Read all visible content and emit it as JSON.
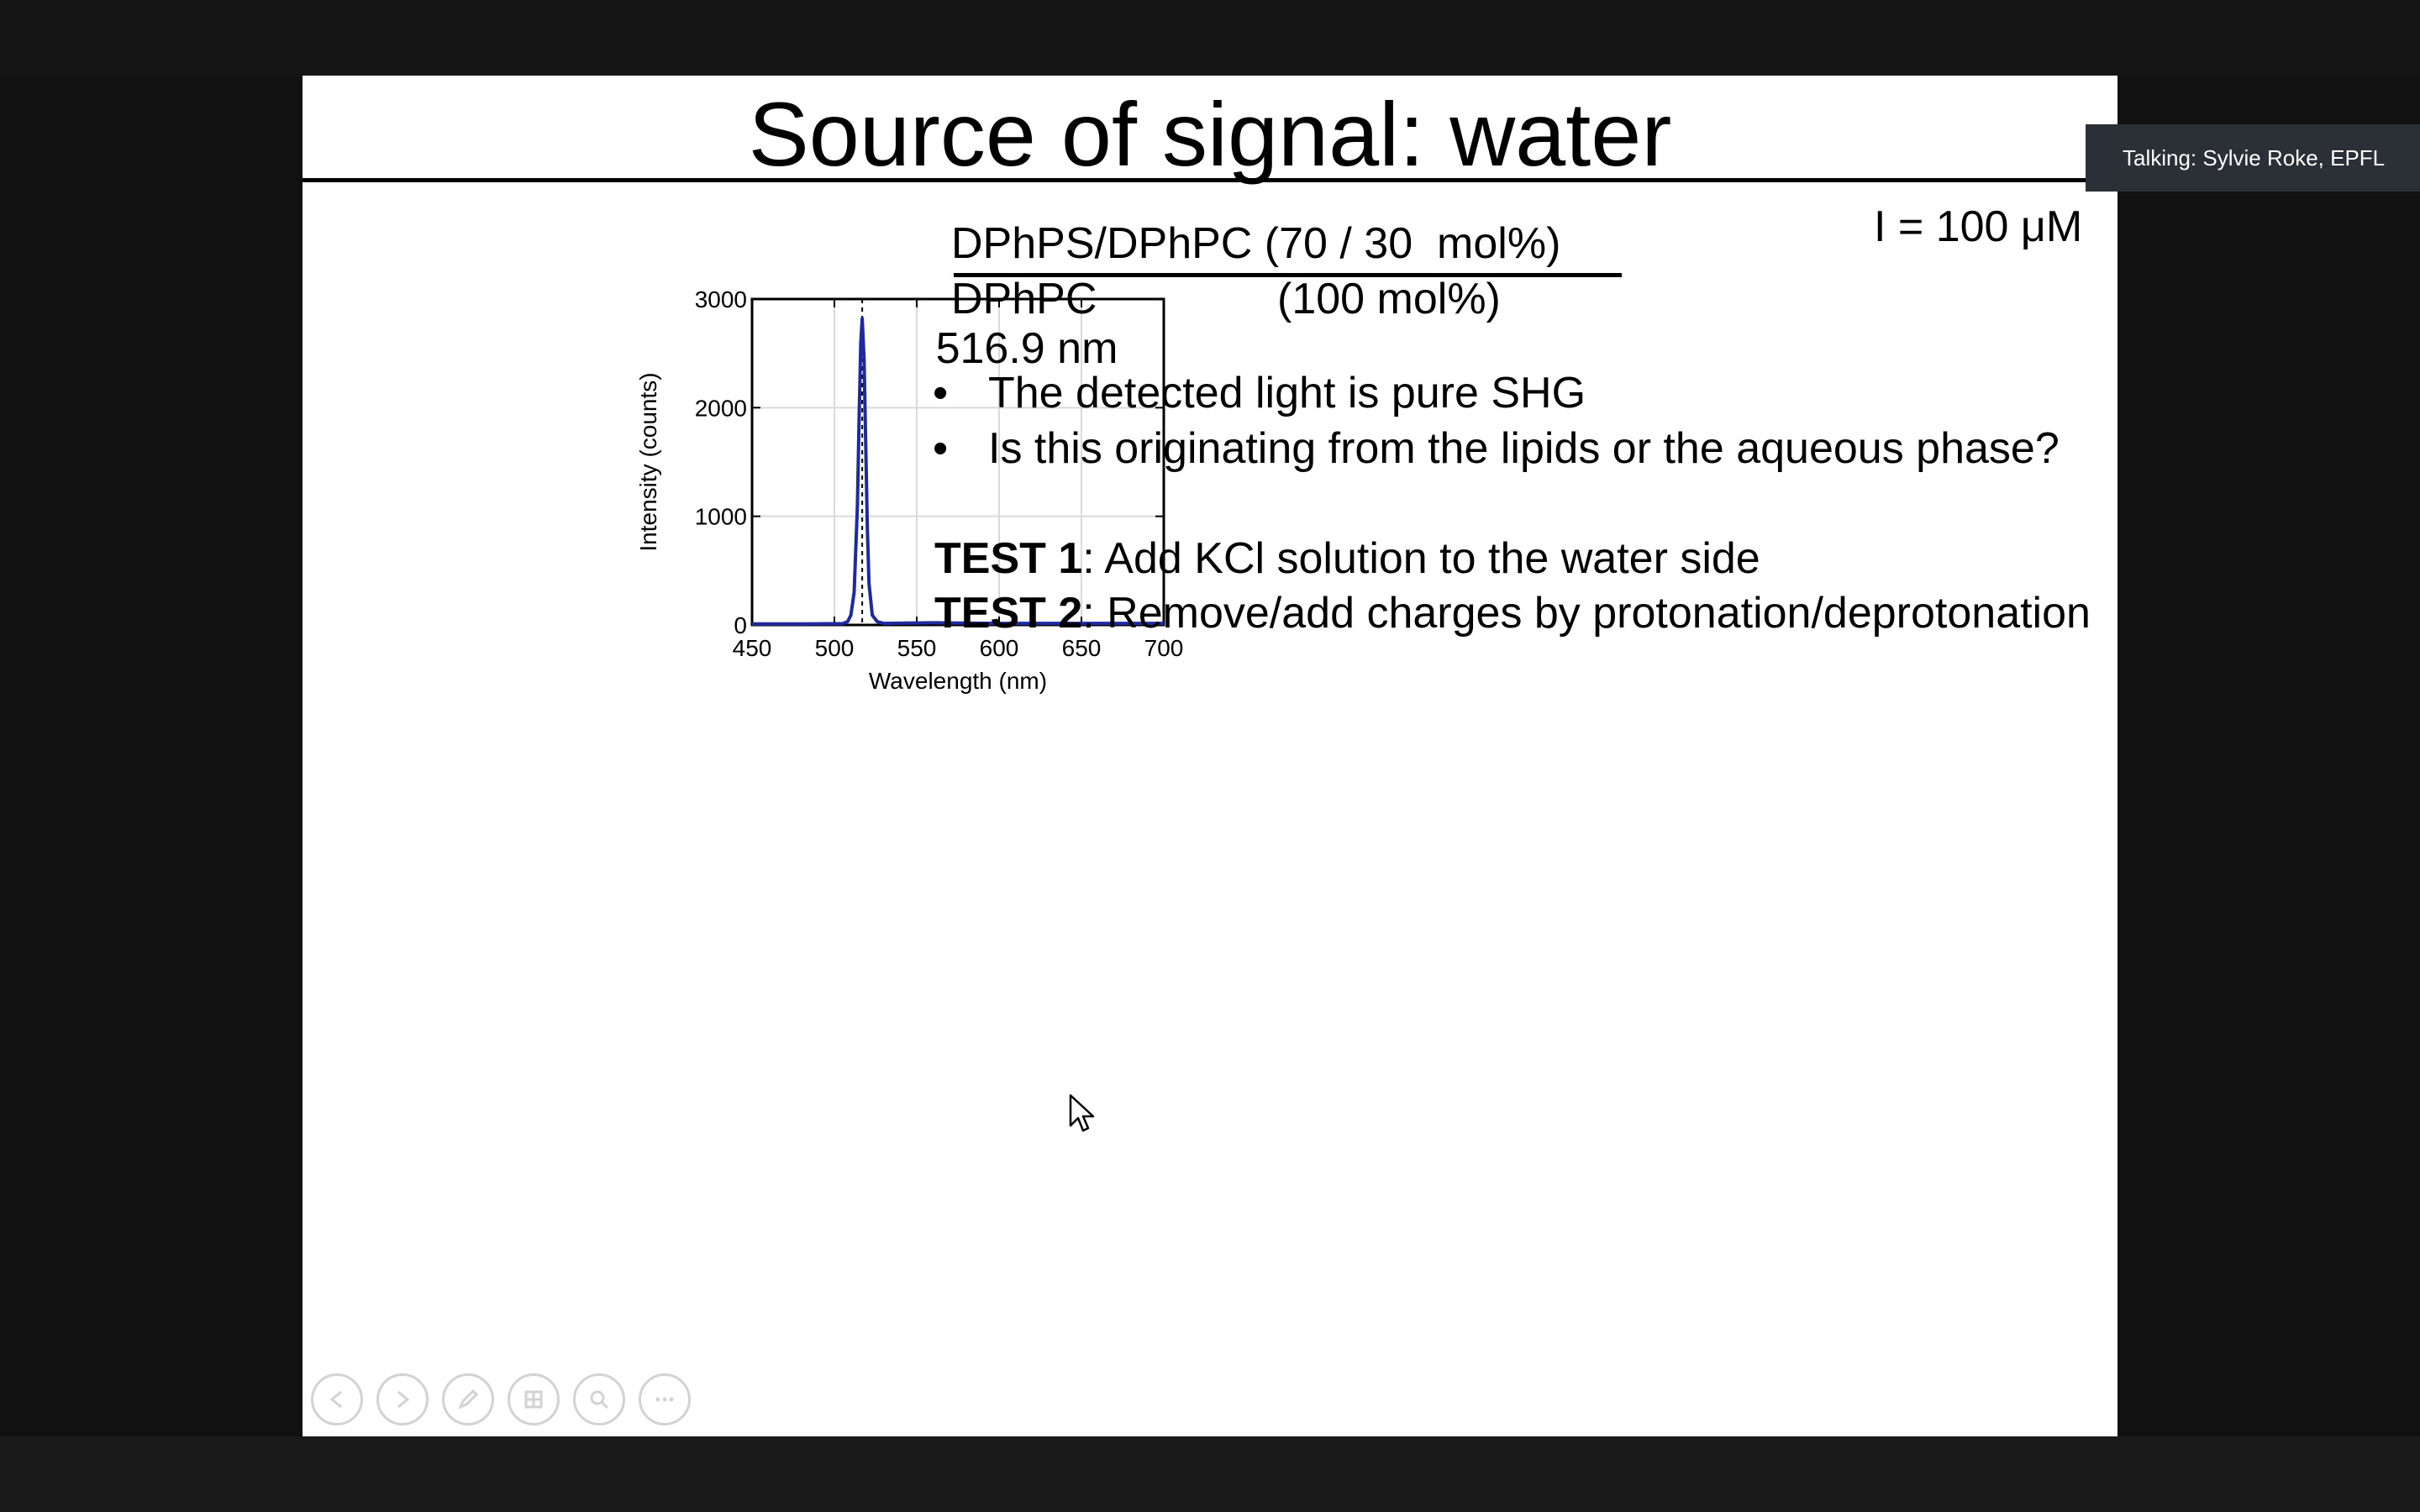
{
  "slide": {
    "title": "Source of signal: water",
    "fraction": {
      "numerator": "DPhPS/DPhPC (70 / 30  mol%)",
      "denominator_left": "DPhPC",
      "denominator_right": "(100 mol%)"
    },
    "concentration": "I = 100 μM",
    "bullets": [
      "The detected light is pure SHG",
      "Is this originating from the lipids or the aqueous phase?"
    ],
    "bullet_symbol": "•",
    "tests": [
      {
        "label": "TEST 1",
        "text": ": Add KCl solution to the water side"
      },
      {
        "label": "TEST 2",
        "text": ": Remove/add charges by protonation/deprotonation"
      }
    ]
  },
  "chart_data": {
    "type": "line",
    "ylabel": "Intensity (counts)",
    "xlabel": "Wavelength (nm)",
    "annotation": "516.9 nm",
    "xlim": [
      450,
      700
    ],
    "ylim": [
      0,
      3000
    ],
    "xticks": [
      450,
      500,
      550,
      600,
      650,
      700
    ],
    "yticks": [
      0,
      1000,
      2000,
      3000
    ],
    "grid": true,
    "reference_line_x": 516.9,
    "series": [
      {
        "color": "#1f2aa0",
        "x": [
          450,
          480,
          505,
          508,
          510,
          512,
          514,
          515,
          516,
          516.9,
          518,
          519,
          520,
          521,
          523,
          526,
          530,
          560,
          600,
          650,
          700
        ],
        "y": [
          10,
          10,
          12,
          30,
          90,
          300,
          1100,
          1900,
          2600,
          2820,
          2450,
          1700,
          900,
          380,
          90,
          30,
          15,
          20,
          15,
          15,
          15
        ]
      }
    ]
  },
  "presentation_controls": [
    {
      "name": "previous-slide-button",
      "icon": "arrow-left-icon"
    },
    {
      "name": "next-slide-button",
      "icon": "arrow-right-icon"
    },
    {
      "name": "pen-tool-button",
      "icon": "pen-icon"
    },
    {
      "name": "slide-grid-button",
      "icon": "slides-grid-icon"
    },
    {
      "name": "zoom-button",
      "icon": "magnifier-icon"
    },
    {
      "name": "more-options-button",
      "icon": "more-icon"
    }
  ],
  "overlay": {
    "talking": "Talking: Sylvie Roke, EPFL"
  }
}
